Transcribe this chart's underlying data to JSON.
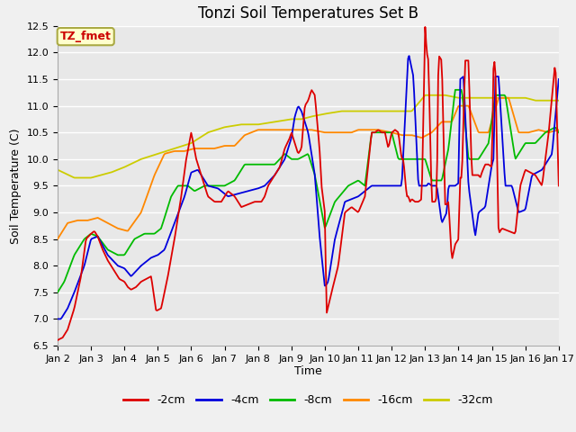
{
  "title": "Tonzi Soil Temperatures Set B",
  "xlabel": "Time",
  "ylabel": "Soil Temperature (C)",
  "ylim": [
    6.5,
    12.5
  ],
  "xlim": [
    0,
    15
  ],
  "xtick_labels": [
    "Jan 2",
    "Jan 3",
    "Jan 4",
    "Jan 5",
    "Jan 6",
    "Jan 7",
    "Jan 8",
    "Jan 9",
    "Jan 10",
    "Jan 11",
    "Jan 12",
    "Jan 13",
    "Jan 14",
    "Jan 15",
    "Jan 16",
    "Jan 17"
  ],
  "series_colors": [
    "#dd0000",
    "#0000dd",
    "#00bb00",
    "#ff8800",
    "#cccc00"
  ],
  "series_labels": [
    "-2cm",
    "-4cm",
    "-8cm",
    "-16cm",
    "-32cm"
  ],
  "legend_label": "TZ_fmet",
  "legend_bg": "#ffffcc",
  "legend_border": "#aaaa44",
  "plot_bg": "#e8e8e8",
  "fig_bg": "#f0f0f0",
  "title_fontsize": 12,
  "axis_label_fontsize": 9,
  "tick_fontsize": 8,
  "legend_fontsize": 9,
  "s2_x": [
    0,
    0.05,
    0.15,
    0.3,
    0.5,
    0.7,
    0.85,
    1.0,
    1.1,
    1.2,
    1.35,
    1.5,
    1.7,
    1.85,
    2.0,
    2.1,
    2.2,
    2.35,
    2.5,
    2.65,
    2.8,
    2.95,
    3.1,
    3.2,
    3.3,
    3.5,
    3.7,
    3.85,
    4.0,
    4.15,
    4.3,
    4.5,
    4.7,
    4.9,
    5.1,
    5.3,
    5.5,
    5.7,
    5.9,
    6.1,
    6.2,
    6.3,
    6.5,
    6.65,
    6.8,
    6.95,
    7.0,
    7.1,
    7.2,
    7.3,
    7.4,
    7.5,
    7.6,
    7.7,
    7.8,
    7.85,
    7.9,
    8.0,
    8.05,
    8.2,
    8.4,
    8.6,
    8.8,
    9.0,
    9.2,
    9.4,
    9.5,
    9.6,
    9.7,
    9.8,
    9.9,
    10.0,
    10.05,
    10.1,
    10.2,
    10.3,
    10.35,
    10.45,
    10.5,
    10.55,
    10.6,
    10.7,
    10.8,
    10.9,
    11.0,
    11.05,
    11.1,
    11.2,
    11.3,
    11.35,
    11.4,
    11.5,
    11.6,
    11.65,
    11.7,
    11.8,
    11.9,
    12.0,
    12.05,
    12.1,
    12.2,
    12.3,
    12.4,
    12.5,
    12.6,
    12.65,
    12.7,
    12.8,
    12.9,
    13.0,
    13.05,
    13.1,
    13.2,
    13.3,
    13.5,
    13.7,
    13.85,
    14.0,
    14.15,
    14.3,
    14.5,
    14.7,
    14.9,
    15.0
  ],
  "s2_y": [
    6.6,
    6.62,
    6.65,
    6.8,
    7.2,
    7.8,
    8.5,
    8.6,
    8.65,
    8.55,
    8.3,
    8.1,
    7.9,
    7.75,
    7.7,
    7.6,
    7.55,
    7.6,
    7.7,
    7.75,
    7.8,
    7.15,
    7.2,
    7.5,
    7.8,
    8.5,
    9.3,
    10.0,
    10.5,
    10.0,
    9.7,
    9.3,
    9.2,
    9.2,
    9.4,
    9.3,
    9.1,
    9.15,
    9.2,
    9.2,
    9.3,
    9.5,
    9.7,
    9.85,
    10.2,
    10.4,
    10.5,
    10.3,
    10.1,
    10.2,
    11.0,
    11.1,
    11.3,
    11.2,
    10.5,
    10.1,
    9.5,
    9.0,
    7.1,
    7.5,
    8.0,
    9.0,
    9.1,
    9.0,
    9.3,
    10.5,
    10.5,
    10.55,
    10.5,
    10.5,
    10.2,
    10.5,
    10.52,
    10.55,
    10.5,
    10.0,
    10.0,
    9.3,
    9.3,
    9.2,
    9.25,
    9.2,
    9.2,
    9.25,
    12.5,
    12.0,
    11.85,
    9.2,
    9.2,
    9.3,
    11.95,
    11.85,
    9.15,
    9.15,
    9.2,
    8.1,
    8.4,
    8.5,
    9.65,
    9.65,
    11.85,
    11.85,
    9.7,
    9.7,
    9.7,
    9.65,
    9.75,
    9.9,
    9.9,
    9.85,
    11.85,
    11.8,
    8.6,
    8.7,
    8.65,
    8.6,
    9.5,
    9.8,
    9.75,
    9.7,
    9.5,
    10.5,
    11.85,
    9.5
  ],
  "s4_x": [
    0,
    0.1,
    0.3,
    0.5,
    0.8,
    1.0,
    1.2,
    1.5,
    1.8,
    2.0,
    2.2,
    2.5,
    2.8,
    3.0,
    3.2,
    3.5,
    3.8,
    4.0,
    4.2,
    4.5,
    4.8,
    5.1,
    5.4,
    5.7,
    6.0,
    6.2,
    6.5,
    6.8,
    7.0,
    7.1,
    7.2,
    7.3,
    7.5,
    7.7,
    7.85,
    8.0,
    8.1,
    8.3,
    8.6,
    9.0,
    9.2,
    9.4,
    9.6,
    9.8,
    10.0,
    10.05,
    10.15,
    10.3,
    10.5,
    10.65,
    10.8,
    11.0,
    11.05,
    11.1,
    11.2,
    11.35,
    11.5,
    11.65,
    11.7,
    11.8,
    11.9,
    12.0,
    12.05,
    12.15,
    12.3,
    12.5,
    12.6,
    12.8,
    13.0,
    13.05,
    13.1,
    13.2,
    13.4,
    13.6,
    13.8,
    14.0,
    14.2,
    14.5,
    14.8,
    15.0
  ],
  "s4_y": [
    7.0,
    7.0,
    7.2,
    7.5,
    8.0,
    8.5,
    8.55,
    8.2,
    8.0,
    7.95,
    7.8,
    8.0,
    8.15,
    8.2,
    8.3,
    8.8,
    9.3,
    9.75,
    9.8,
    9.5,
    9.45,
    9.3,
    9.35,
    9.4,
    9.45,
    9.5,
    9.7,
    10.0,
    10.4,
    10.8,
    11.0,
    10.9,
    10.5,
    9.7,
    8.5,
    7.6,
    7.7,
    8.5,
    9.2,
    9.3,
    9.4,
    9.5,
    9.5,
    9.5,
    9.5,
    9.5,
    9.5,
    9.5,
    12.0,
    11.55,
    9.5,
    9.5,
    9.5,
    9.55,
    9.5,
    9.5,
    8.8,
    9.0,
    9.5,
    9.5,
    9.5,
    9.55,
    11.5,
    11.55,
    9.5,
    8.55,
    9.0,
    9.1,
    9.9,
    10.0,
    11.55,
    11.55,
    9.5,
    9.5,
    9.0,
    9.05,
    9.7,
    9.8,
    10.1,
    11.5
  ],
  "s8_x": [
    0,
    0.2,
    0.5,
    0.8,
    1.0,
    1.2,
    1.5,
    1.8,
    2.0,
    2.3,
    2.6,
    2.9,
    3.1,
    3.4,
    3.6,
    3.9,
    4.1,
    4.4,
    4.7,
    5.0,
    5.3,
    5.6,
    5.9,
    6.2,
    6.5,
    6.8,
    7.0,
    7.2,
    7.5,
    7.7,
    8.0,
    8.3,
    8.7,
    9.0,
    9.2,
    9.4,
    9.7,
    10.0,
    10.2,
    10.5,
    10.8,
    11.0,
    11.2,
    11.5,
    11.7,
    11.9,
    12.1,
    12.3,
    12.6,
    12.9,
    13.1,
    13.4,
    13.7,
    14.0,
    14.3,
    14.6,
    14.9,
    15.0
  ],
  "s8_y": [
    7.5,
    7.7,
    8.2,
    8.5,
    8.6,
    8.55,
    8.3,
    8.2,
    8.2,
    8.5,
    8.6,
    8.6,
    8.7,
    9.3,
    9.5,
    9.5,
    9.4,
    9.5,
    9.5,
    9.5,
    9.6,
    9.9,
    9.9,
    9.9,
    9.9,
    10.1,
    10.0,
    10.0,
    10.1,
    9.7,
    8.7,
    9.2,
    9.5,
    9.6,
    9.5,
    10.5,
    10.5,
    10.5,
    10.0,
    10.0,
    10.0,
    10.0,
    9.6,
    9.6,
    10.2,
    11.3,
    11.3,
    10.0,
    10.0,
    10.3,
    11.2,
    11.2,
    10.0,
    10.3,
    10.3,
    10.5,
    10.6,
    10.5
  ],
  "s16_x": [
    0,
    0.3,
    0.6,
    0.9,
    1.2,
    1.5,
    1.8,
    2.1,
    2.5,
    2.9,
    3.2,
    3.5,
    3.8,
    4.1,
    4.4,
    4.7,
    5.0,
    5.3,
    5.6,
    6.0,
    6.3,
    6.7,
    7.0,
    7.3,
    7.6,
    8.0,
    8.4,
    8.8,
    9.0,
    9.3,
    9.6,
    10.0,
    10.3,
    10.6,
    10.9,
    11.2,
    11.5,
    11.8,
    12.0,
    12.3,
    12.6,
    12.9,
    13.2,
    13.5,
    13.8,
    14.1,
    14.4,
    14.7,
    15.0
  ],
  "s16_y": [
    8.5,
    8.8,
    8.85,
    8.85,
    8.9,
    8.8,
    8.7,
    8.65,
    9.0,
    9.7,
    10.1,
    10.15,
    10.15,
    10.2,
    10.2,
    10.2,
    10.25,
    10.25,
    10.45,
    10.55,
    10.55,
    10.55,
    10.55,
    10.55,
    10.55,
    10.5,
    10.5,
    10.5,
    10.55,
    10.55,
    10.55,
    10.5,
    10.45,
    10.45,
    10.4,
    10.5,
    10.7,
    10.7,
    11.0,
    11.0,
    10.5,
    10.5,
    11.15,
    11.15,
    10.5,
    10.5,
    10.55,
    10.5,
    10.55
  ],
  "s32_x": [
    0,
    0.5,
    1.0,
    1.3,
    1.6,
    2.0,
    2.5,
    3.0,
    3.5,
    4.0,
    4.5,
    5.0,
    5.5,
    6.0,
    6.5,
    7.0,
    7.3,
    7.6,
    8.0,
    8.5,
    9.0,
    9.5,
    10.0,
    10.3,
    10.6,
    11.0,
    11.3,
    11.6,
    12.0,
    12.3,
    12.6,
    13.0,
    13.3,
    13.6,
    14.0,
    14.3,
    14.6,
    15.0
  ],
  "s32_y": [
    9.8,
    9.65,
    9.65,
    9.7,
    9.75,
    9.85,
    10.0,
    10.1,
    10.2,
    10.3,
    10.5,
    10.6,
    10.65,
    10.65,
    10.7,
    10.75,
    10.75,
    10.8,
    10.85,
    10.9,
    10.9,
    10.9,
    10.9,
    10.9,
    10.9,
    11.2,
    11.2,
    11.2,
    11.15,
    11.15,
    11.15,
    11.15,
    11.15,
    11.15,
    11.15,
    11.1,
    11.1,
    11.1
  ]
}
